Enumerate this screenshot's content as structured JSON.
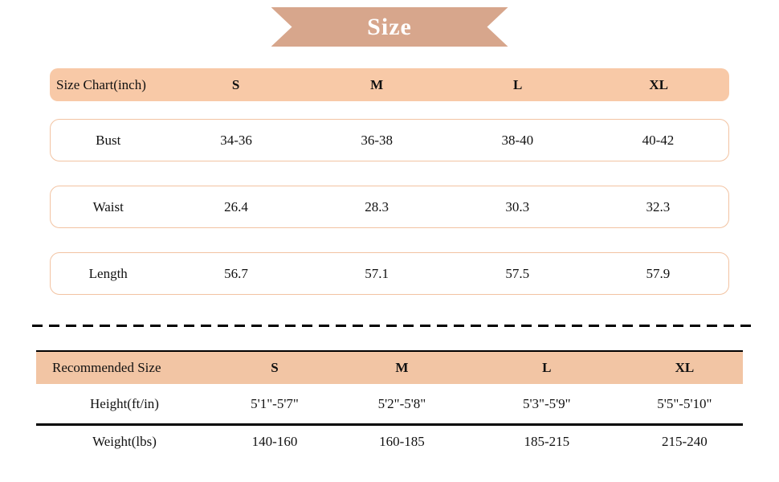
{
  "ribbon": {
    "title": "Size"
  },
  "colors": {
    "ribbon_background": "#d7a68c",
    "size_table_header_bg": "#f8c9a7",
    "size_table_row_border": "#f2c3a2",
    "recommended_header_bg": "#f2c5a4",
    "divider": "#000000",
    "text": "#111111",
    "ribbon_text": "#ffffff"
  },
  "size_table": {
    "header_label": "Size Chart(inch)",
    "columns": [
      "S",
      "M",
      "L",
      "XL"
    ],
    "rows": [
      {
        "label": "Bust",
        "values": [
          "34-36",
          "36-38",
          "38-40",
          "40-42"
        ]
      },
      {
        "label": "Waist",
        "values": [
          "26.4",
          "28.3",
          "30.3",
          "32.3"
        ]
      },
      {
        "label": "Length",
        "values": [
          "56.7",
          "57.1",
          "57.5",
          "57.9"
        ]
      }
    ]
  },
  "recommended_table": {
    "header_label": "Recommended Size",
    "columns": [
      "S",
      "M",
      "L",
      "XL"
    ],
    "rows": [
      {
        "label": "Height(ft/in)",
        "values": [
          "5'1\"-5'7\"",
          "5'2\"-5'8\"",
          "5'3\"-5'9\"",
          "5'5\"-5'10\""
        ]
      },
      {
        "label": "Weight(lbs)",
        "values": [
          "140-160",
          "160-185",
          "185-215",
          "215-240"
        ]
      }
    ]
  },
  "chart_data": [
    {
      "type": "table",
      "title": "Size Chart(inch)",
      "columns": [
        "",
        "S",
        "M",
        "L",
        "XL"
      ],
      "rows": [
        [
          "Bust",
          "34-36",
          "36-38",
          "38-40",
          "40-42"
        ],
        [
          "Waist",
          "26.4",
          "28.3",
          "30.3",
          "32.3"
        ],
        [
          "Length",
          "56.7",
          "57.1",
          "57.5",
          "57.9"
        ]
      ]
    },
    {
      "type": "table",
      "title": "Recommended Size",
      "columns": [
        "",
        "S",
        "M",
        "L",
        "XL"
      ],
      "rows": [
        [
          "Height(ft/in)",
          "5'1\"-5'7\"",
          "5'2\"-5'8\"",
          "5'3\"-5'9\"",
          "5'5\"-5'10\""
        ],
        [
          "Weight(lbs)",
          "140-160",
          "160-185",
          "185-215",
          "215-240"
        ]
      ]
    }
  ]
}
